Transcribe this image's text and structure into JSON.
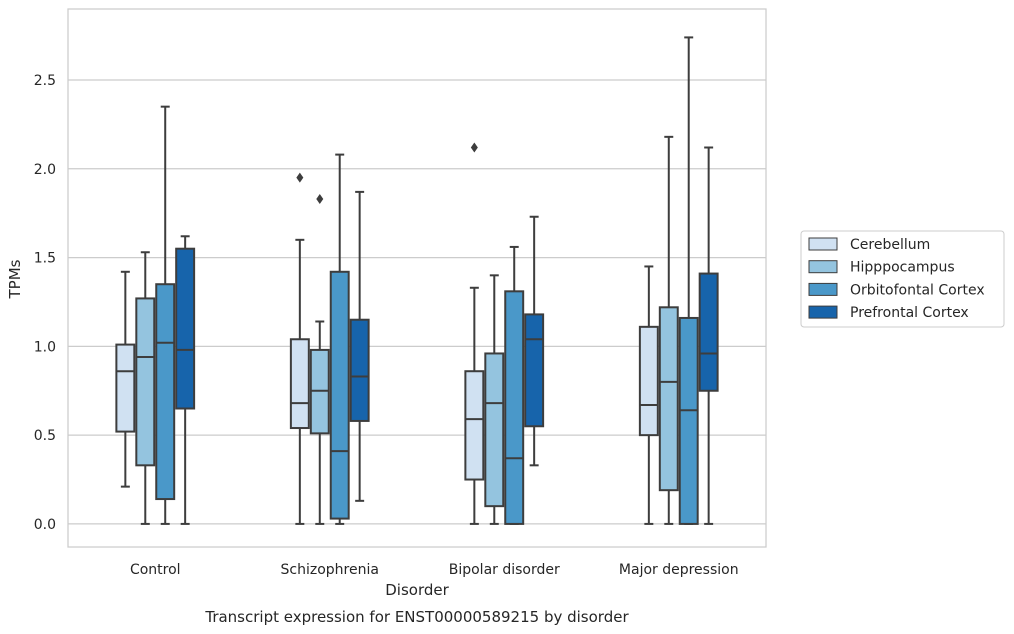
{
  "chart_data": {
    "type": "box",
    "title": "",
    "caption": "Transcript expression for ENST00000589215 by disorder",
    "xlabel": "Disorder",
    "ylabel": "TPMs",
    "ylim": [
      -0.13,
      2.9
    ],
    "yticks": [
      0.0,
      0.5,
      1.0,
      1.5,
      2.0,
      2.5
    ],
    "ytick_labels": [
      "0.0",
      "0.5",
      "1.0",
      "1.5",
      "2.0",
      "2.5"
    ],
    "grid": "horizontal",
    "legend_position": "right",
    "categories": [
      "Control",
      "Schizophrenia",
      "Bipolar disorder",
      "Major depression"
    ],
    "series": [
      {
        "name": "Cerebellum",
        "color": "#d0e1f2",
        "boxes": [
          {
            "whislo": 0.21,
            "q1": 0.52,
            "med": 0.86,
            "q3": 1.01,
            "whishi": 1.42,
            "fliers": []
          },
          {
            "whislo": 0.0,
            "q1": 0.54,
            "med": 0.68,
            "q3": 1.04,
            "whishi": 1.6,
            "fliers": [
              1.95
            ]
          },
          {
            "whislo": 0.0,
            "q1": 0.25,
            "med": 0.59,
            "q3": 0.86,
            "whishi": 1.33,
            "fliers": [
              2.12
            ]
          },
          {
            "whislo": 0.0,
            "q1": 0.5,
            "med": 0.67,
            "q3": 1.11,
            "whishi": 1.45,
            "fliers": []
          }
        ]
      },
      {
        "name": "Hipppocampus",
        "color": "#94c4df",
        "boxes": [
          {
            "whislo": 0.0,
            "q1": 0.33,
            "med": 0.94,
            "q3": 1.27,
            "whishi": 1.53,
            "fliers": []
          },
          {
            "whislo": 0.0,
            "q1": 0.51,
            "med": 0.75,
            "q3": 0.98,
            "whishi": 1.14,
            "fliers": [
              1.83
            ]
          },
          {
            "whislo": 0.0,
            "q1": 0.1,
            "med": 0.68,
            "q3": 0.96,
            "whishi": 1.4,
            "fliers": []
          },
          {
            "whislo": 0.0,
            "q1": 0.19,
            "med": 0.8,
            "q3": 1.22,
            "whishi": 2.18,
            "fliers": []
          }
        ]
      },
      {
        "name": "Orbitofontal Cortex",
        "color": "#4a98c9",
        "boxes": [
          {
            "whislo": 0.0,
            "q1": 0.14,
            "med": 1.02,
            "q3": 1.35,
            "whishi": 2.35,
            "fliers": []
          },
          {
            "whislo": 0.0,
            "q1": 0.03,
            "med": 0.41,
            "q3": 1.42,
            "whishi": 2.08,
            "fliers": []
          },
          {
            "whislo": 0.0,
            "q1": 0.0,
            "med": 0.37,
            "q3": 1.31,
            "whishi": 1.56,
            "fliers": []
          },
          {
            "whislo": 0.0,
            "q1": 0.0,
            "med": 0.64,
            "q3": 1.16,
            "whishi": 2.74,
            "fliers": []
          }
        ]
      },
      {
        "name": "Prefrontal Cortex",
        "color": "#1764ab",
        "boxes": [
          {
            "whislo": 0.0,
            "q1": 0.65,
            "med": 0.98,
            "q3": 1.55,
            "whishi": 1.62,
            "fliers": []
          },
          {
            "whislo": 0.13,
            "q1": 0.58,
            "med": 0.83,
            "q3": 1.15,
            "whishi": 1.87,
            "fliers": []
          },
          {
            "whislo": 0.33,
            "q1": 0.55,
            "med": 1.04,
            "q3": 1.18,
            "whishi": 1.73,
            "fliers": []
          },
          {
            "whislo": 0.0,
            "q1": 0.75,
            "med": 0.96,
            "q3": 1.41,
            "whishi": 2.12,
            "fliers": []
          }
        ]
      }
    ]
  }
}
